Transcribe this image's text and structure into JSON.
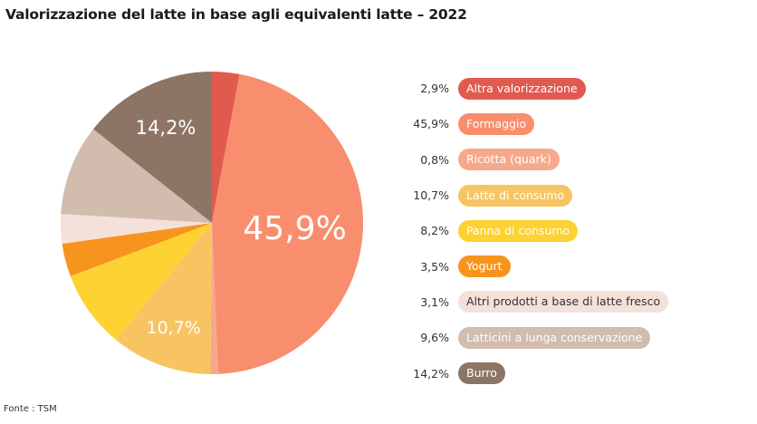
{
  "title": "Valorizzazione del latte in base agli equivalenti latte – 2022",
  "source": "Fonte : TSM",
  "chart_data": {
    "type": "pie",
    "title": "Valorizzazione del latte in base agli equivalenti latte – 2022",
    "unit": "%",
    "slices": [
      {
        "label": "Altra valorizzazione",
        "value": 2.9,
        "display": "2,9%",
        "color": "#e05a50",
        "text_color": "#ffffff",
        "slice_label": ""
      },
      {
        "label": "Formaggio",
        "value": 45.9,
        "display": "45,9%",
        "color": "#f88e6d",
        "text_color": "#ffffff",
        "slice_label": "45,9%"
      },
      {
        "label": "Ricotta (quark)",
        "value": 0.8,
        "display": "0,8%",
        "color": "#f5a98b",
        "text_color": "#ffffff",
        "slice_label": ""
      },
      {
        "label": "Latte di consumo",
        "value": 10.7,
        "display": "10,7%",
        "color": "#f8c462",
        "text_color": "#ffffff",
        "slice_label": "10,7%"
      },
      {
        "label": "Panna di consumo",
        "value": 8.2,
        "display": "8,2%",
        "color": "#fdd232",
        "text_color": "#ffffff",
        "slice_label": ""
      },
      {
        "label": "Yogurt",
        "value": 3.5,
        "display": "3,5%",
        "color": "#f7941d",
        "text_color": "#ffffff",
        "slice_label": ""
      },
      {
        "label": "Altri prodotti a base di latte fresco",
        "value": 3.1,
        "display": "3,1%",
        "color": "#f4e1da",
        "text_color": "#333333",
        "slice_label": ""
      },
      {
        "label": "Latticini a lunga conservazione",
        "value": 9.6,
        "display": "9,6%",
        "color": "#d1bcae",
        "text_color": "#ffffff",
        "slice_label": ""
      },
      {
        "label": "Burro",
        "value": 14.2,
        "display": "14,2%",
        "color": "#8c7565",
        "text_color": "#ffffff",
        "slice_label": "14,2%"
      }
    ]
  }
}
